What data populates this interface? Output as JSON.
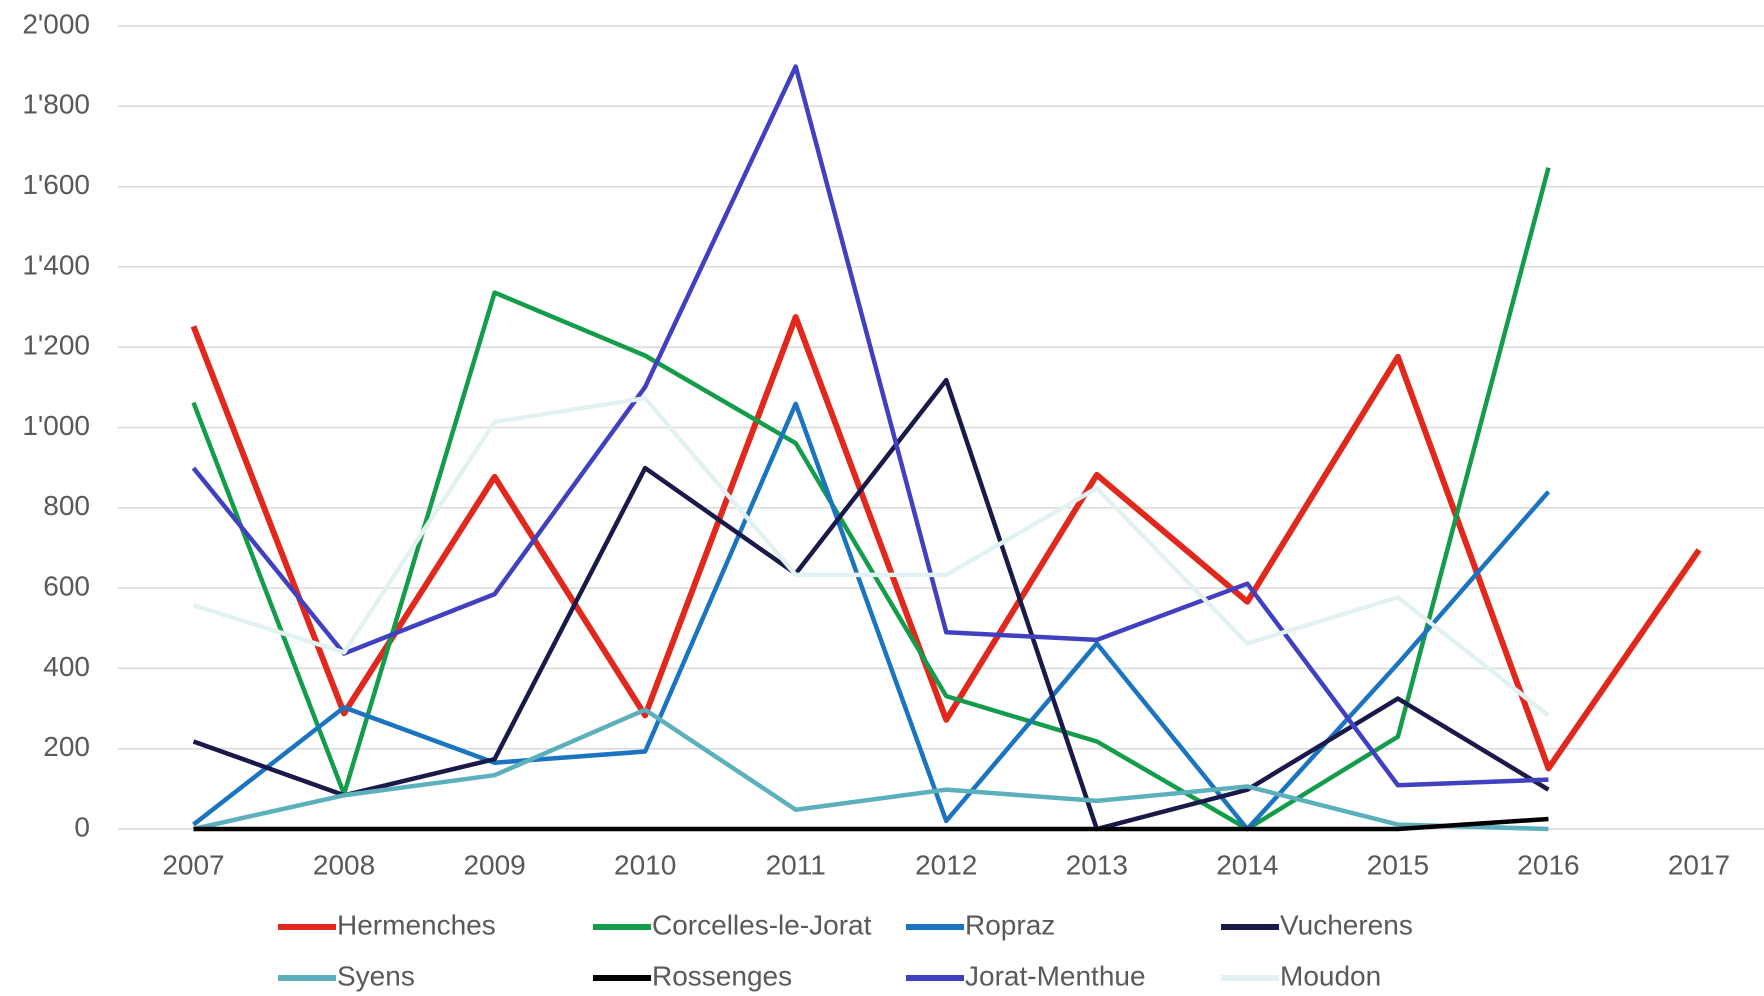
{
  "chart_data": {
    "type": "line",
    "categories": [
      "2007",
      "2008",
      "2009",
      "2010",
      "2011",
      "2012",
      "2013",
      "2014",
      "2015",
      "2016",
      "2017"
    ],
    "series": [
      {
        "name": "Hermenches",
        "color": "#e0281c",
        "values": [
          1252,
          288,
          877,
          283,
          1275,
          272,
          882,
          566,
          1176,
          151,
          695
        ]
      },
      {
        "name": "Corcelles-le-Jorat",
        "color": "#139c4a",
        "values": [
          1062,
          87,
          1336,
          1179,
          961,
          331,
          218,
          0,
          230,
          1647,
          null
        ]
      },
      {
        "name": "Ropraz",
        "color": "#1a74bf",
        "values": [
          11,
          303,
          165,
          193,
          1059,
          20,
          462,
          0,
          412,
          840,
          null
        ]
      },
      {
        "name": "Vucherens",
        "color": "#1a1a4a",
        "values": [
          218,
          84,
          174,
          899,
          636,
          1118,
          0,
          98,
          325,
          98,
          null
        ]
      },
      {
        "name": "Syens",
        "color": "#5bb0bb",
        "values": [
          0,
          84,
          134,
          297,
          48,
          98,
          70,
          106,
          11,
          0,
          null
        ]
      },
      {
        "name": "Rossenges",
        "color": "#000000",
        "values": [
          0,
          0,
          0,
          0,
          0,
          0,
          0,
          0,
          0,
          25,
          null
        ]
      },
      {
        "name": "Jorat-Menthue",
        "color": "#4040c0",
        "values": [
          899,
          437,
          585,
          1101,
          1899,
          490,
          471,
          611,
          109,
          123,
          null
        ]
      },
      {
        "name": "Moudon",
        "color": "#e2f1f2",
        "values": [
          557,
          440,
          1014,
          1073,
          633,
          633,
          849,
          462,
          577,
          283,
          null
        ]
      }
    ],
    "ylim": [
      0,
      2000
    ],
    "yticks": [
      0,
      200,
      400,
      600,
      800,
      {
        "value": 1000,
        "label": "1'000"
      },
      {
        "value": 1200,
        "label": "1'200"
      },
      {
        "value": 1400,
        "label": "1'400"
      },
      {
        "value": 1600,
        "label": "1'600"
      },
      {
        "value": 1800,
        "label": "1'800"
      },
      {
        "value": 2000,
        "label": "2'000"
      }
    ],
    "grid": true,
    "legend": "bottom"
  }
}
